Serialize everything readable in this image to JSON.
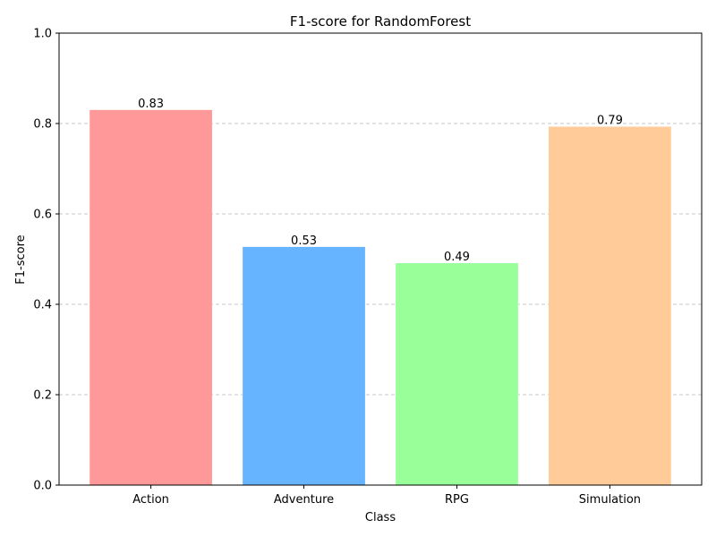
{
  "chart_data": {
    "type": "bar",
    "title": "F1-score for RandomForest",
    "xlabel": "Class",
    "ylabel": "F1-score",
    "categories": [
      "Action",
      "Adventure",
      "RPG",
      "Simulation"
    ],
    "values": [
      0.83,
      0.527,
      0.491,
      0.793
    ],
    "value_labels": [
      "0.83",
      "0.53",
      "0.49",
      "0.79"
    ],
    "colors": [
      "#ff9999",
      "#66b3ff",
      "#99ff99",
      "#ffcc99"
    ],
    "ylim": [
      0,
      1.0
    ],
    "yticks": [
      0.0,
      0.2,
      0.4,
      0.6,
      0.8,
      1.0
    ],
    "ytick_labels": [
      "0.0",
      "0.2",
      "0.4",
      "0.6",
      "0.8",
      "1.0"
    ],
    "grid": "y-axis dashed"
  }
}
